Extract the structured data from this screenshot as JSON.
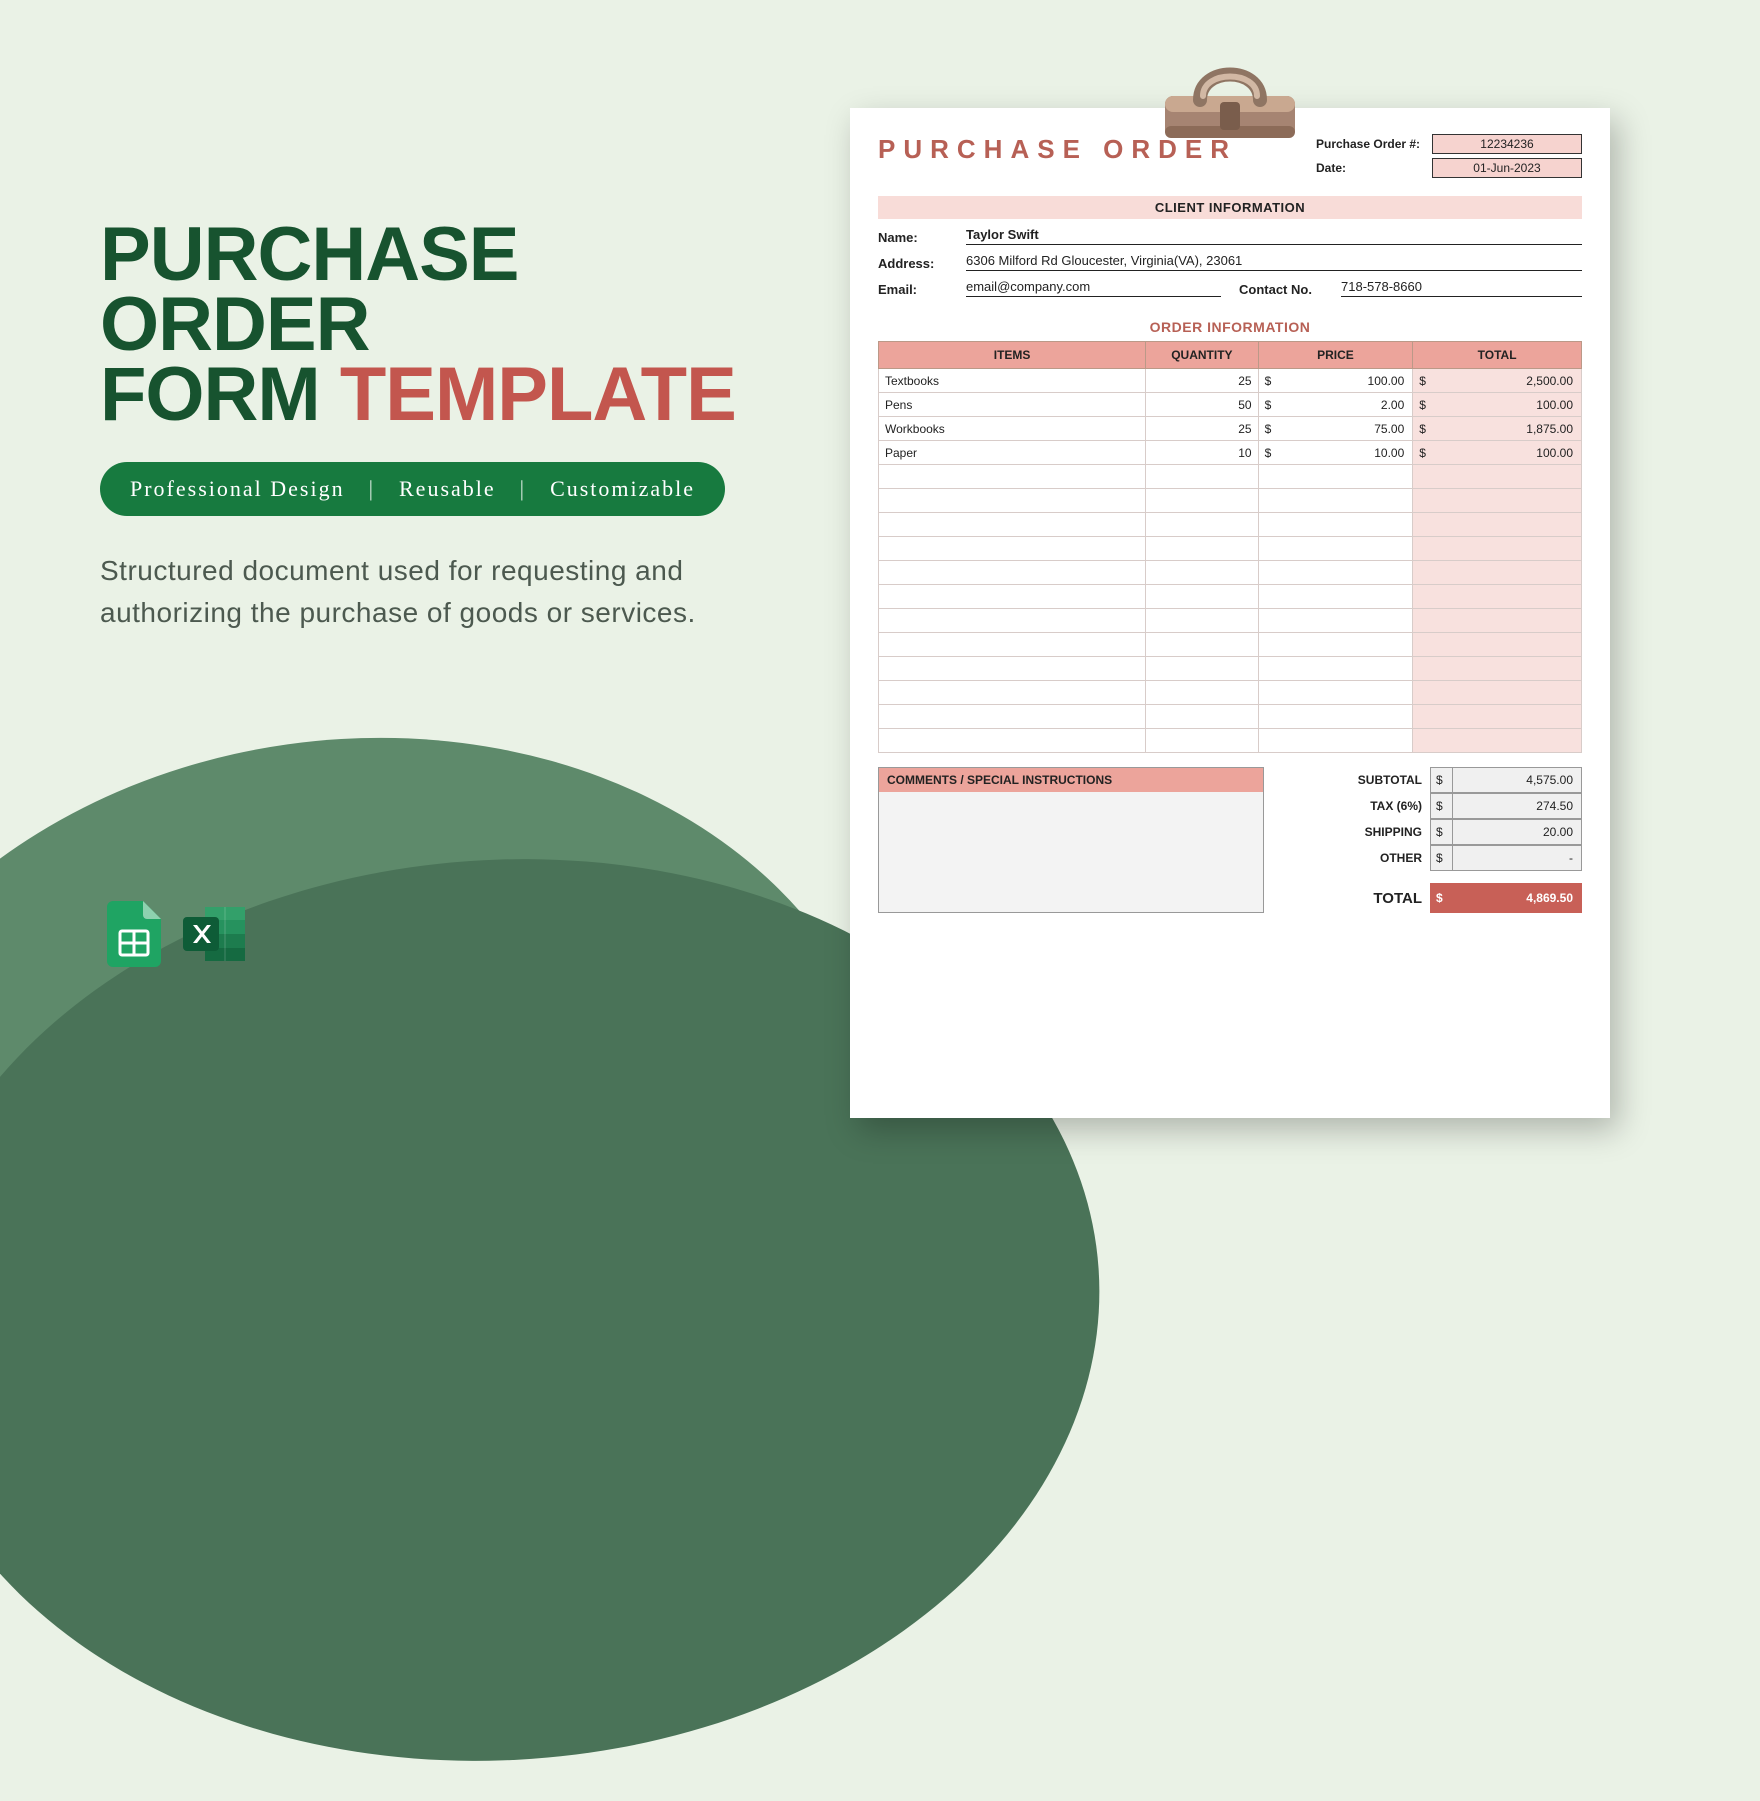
{
  "colors": {
    "page_bg": "#eaf2e6",
    "swoosh_light": "#5e8a6b",
    "swoosh_dark": "#4a7358",
    "headline_green": "#17532f",
    "headline_red": "#c3564e",
    "pill_bg": "#177a3f",
    "pill_text": "#ffffff",
    "desc_color": "#4c594f",
    "doc_accent": "#b76055",
    "banner_pink": "#f8dcd8",
    "header_pink": "#eca49b",
    "total_col_bg": "#f8e1de",
    "grand_total_bg": "#c86057"
  },
  "left": {
    "line1": "PURCHASE ORDER",
    "line2a": "FORM ",
    "line2b": "TEMPLATE",
    "pill": [
      "Professional Design",
      "Reusable",
      "Customizable"
    ],
    "description": "Structured document used for requesting and authorizing the purchase of goods or services."
  },
  "doc": {
    "title": "PURCHASE ORDER",
    "meta": {
      "po_label": "Purchase Order #:",
      "po_value": "12234236",
      "date_label": "Date:",
      "date_value": "01-Jun-2023"
    },
    "client_banner": "CLIENT INFORMATION",
    "client": {
      "name_label": "Name:",
      "name": "Taylor Swift",
      "address_label": "Address:",
      "address": "6306 Milford Rd Gloucester, Virginia(VA), 23061",
      "email_label": "Email:",
      "email": "email@company.com",
      "contact_label": "Contact No.",
      "contact": "718-578-8660"
    },
    "order_title": "ORDER INFORMATION",
    "columns": [
      "ITEMS",
      "QUANTITY",
      "PRICE",
      "TOTAL"
    ],
    "currency": "$",
    "rows": [
      {
        "item": "Textbooks",
        "qty": "25",
        "price": "100.00",
        "total": "2,500.00"
      },
      {
        "item": "Pens",
        "qty": "50",
        "price": "2.00",
        "total": "100.00"
      },
      {
        "item": "Workbooks",
        "qty": "25",
        "price": "75.00",
        "total": "1,875.00"
      },
      {
        "item": "Paper",
        "qty": "10",
        "price": "10.00",
        "total": "100.00"
      }
    ],
    "empty_rows": 12,
    "comments_header": "COMMENTS / SPECIAL INSTRUCTIONS",
    "totals": [
      {
        "label": "SUBTOTAL",
        "value": "4,575.00"
      },
      {
        "label": "TAX (6%)",
        "value": "274.50"
      },
      {
        "label": "SHIPPING",
        "value": "20.00"
      },
      {
        "label": "OTHER",
        "value": "-"
      }
    ],
    "grand_label": "TOTAL",
    "grand_value": "4,869.50"
  }
}
